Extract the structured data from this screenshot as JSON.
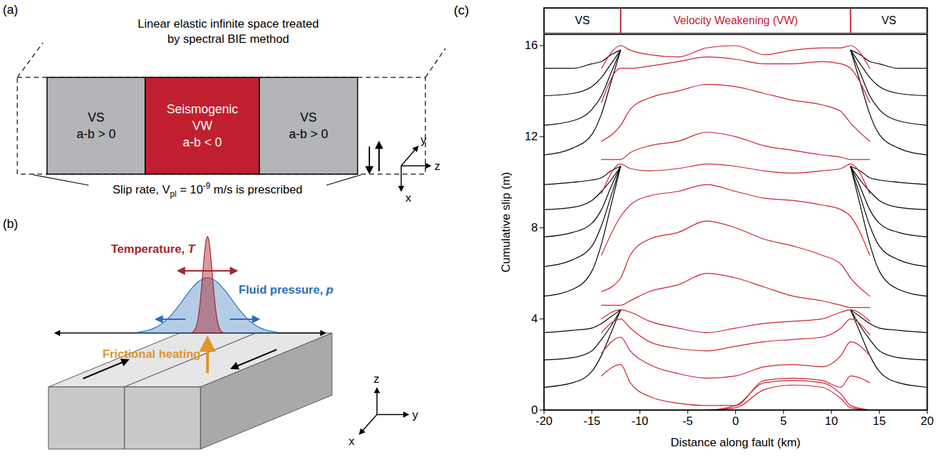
{
  "panels": {
    "a": {
      "letter": "(a)",
      "title_lines": [
        "Linear elastic infinite space treated",
        "by spectral BIE method"
      ],
      "regions": [
        {
          "lines": [
            "VS",
            "a-b > 0"
          ],
          "color": "#b3b5b8",
          "text_color": "#000000"
        },
        {
          "lines": [
            "Seismogenic",
            "VW",
            "a-b < 0"
          ],
          "color": "#c01f2f",
          "text_color": "#ffffff"
        },
        {
          "lines": [
            "VS",
            "a-b > 0"
          ],
          "color": "#b3b5b8",
          "text_color": "#000000"
        }
      ],
      "note": {
        "text": "Slip rate, V",
        "sub": "pl",
        "mid": " = 10",
        "sup": "-9",
        "end": " m/s is prescribed"
      },
      "axes": {
        "x": "x",
        "y": "y",
        "z": "z"
      }
    },
    "b": {
      "letter": "(b)",
      "temperature": {
        "label": "Temperature, T",
        "color": "#a8222a"
      },
      "pressure": {
        "label": "Fluid pressure, p",
        "color": "#2a6ebb"
      },
      "heating": {
        "label": "Frictional heating",
        "color": "#e0952a"
      },
      "axes": {
        "x": "x",
        "y": "y",
        "z": "z"
      }
    }
  },
  "chart_data": {
    "type": "line",
    "letter": "(c)",
    "xlabel": "Distance along fault (km)",
    "ylabel": "Cumulative slip (m)",
    "xlim": [
      -20,
      20
    ],
    "xticks": [
      -20,
      -15,
      -10,
      -5,
      0,
      5,
      10,
      15,
      20
    ],
    "ylim": [
      0,
      16.5
    ],
    "yticks": [
      0,
      4,
      8,
      12,
      16
    ],
    "zones": [
      {
        "label": "VS",
        "from": -20,
        "to": -12,
        "color": "#000000"
      },
      {
        "label": "Velocity Weakening (VW)",
        "from": -12,
        "to": 12,
        "color": "#c8202f"
      },
      {
        "label": "VS",
        "from": 12,
        "to": 20,
        "color": "#000000"
      }
    ],
    "series": [
      {
        "color": "#000000",
        "x": [
          -20,
          -17,
          -15,
          -14,
          -13,
          -12
        ],
        "values": [
          1.0,
          1.2,
          1.7,
          2.4,
          3.4,
          4.4
        ]
      },
      {
        "color": "#000000",
        "x": [
          -20,
          -17,
          -15,
          -14,
          -13,
          -12
        ],
        "values": [
          2.2,
          2.3,
          2.6,
          3.1,
          3.7,
          4.4
        ]
      },
      {
        "color": "#000000",
        "x": [
          -20,
          -17,
          -15,
          -14,
          -13,
          -12
        ],
        "values": [
          3.4,
          3.5,
          3.6,
          3.8,
          4.1,
          4.4
        ]
      },
      {
        "color": "#000000",
        "x": [
          -20,
          -17,
          -15,
          -14,
          -13,
          -12
        ],
        "values": [
          5.0,
          5.3,
          6.1,
          7.3,
          9.0,
          10.7
        ]
      },
      {
        "color": "#000000",
        "x": [
          -20,
          -17,
          -15,
          -14,
          -13,
          -12
        ],
        "values": [
          6.3,
          6.6,
          7.2,
          8.1,
          9.4,
          10.7
        ]
      },
      {
        "color": "#000000",
        "x": [
          -20,
          -17,
          -15,
          -14,
          -13,
          -12
        ],
        "values": [
          7.6,
          7.8,
          8.2,
          8.8,
          9.8,
          10.7
        ]
      },
      {
        "color": "#000000",
        "x": [
          -20,
          -17,
          -15,
          -14,
          -13,
          -12
        ],
        "values": [
          8.8,
          8.9,
          9.2,
          9.6,
          10.1,
          10.7
        ]
      },
      {
        "color": "#000000",
        "x": [
          -20,
          -17,
          -15,
          -14,
          -13,
          -12
        ],
        "values": [
          9.9,
          10.0,
          10.1,
          10.2,
          10.5,
          10.7
        ]
      },
      {
        "color": "#000000",
        "x": [
          -20,
          -17,
          -15,
          -14,
          -13,
          -12
        ],
        "values": [
          11.2,
          11.5,
          12.1,
          13.0,
          14.4,
          15.8
        ]
      },
      {
        "color": "#000000",
        "x": [
          -20,
          -17,
          -15,
          -14,
          -13,
          -12
        ],
        "values": [
          12.5,
          12.7,
          13.2,
          13.8,
          14.8,
          15.8
        ]
      },
      {
        "color": "#000000",
        "x": [
          -20,
          -17,
          -15,
          -14,
          -13,
          -12
        ],
        "values": [
          13.8,
          13.9,
          14.2,
          14.6,
          15.2,
          15.8
        ]
      },
      {
        "color": "#000000",
        "x": [
          -20,
          -17,
          -15,
          -14,
          -13,
          -12
        ],
        "values": [
          15.0,
          15.0,
          15.2,
          15.3,
          15.6,
          15.8
        ]
      },
      {
        "color": "#000000",
        "x": [
          12,
          13,
          14,
          15,
          17,
          20
        ],
        "values": [
          4.4,
          3.4,
          2.4,
          1.7,
          1.2,
          1.0
        ]
      },
      {
        "color": "#000000",
        "x": [
          12,
          13,
          14,
          15,
          17,
          20
        ],
        "values": [
          4.4,
          3.7,
          3.1,
          2.6,
          2.3,
          2.2
        ]
      },
      {
        "color": "#000000",
        "x": [
          12,
          13,
          14,
          15,
          17,
          20
        ],
        "values": [
          4.4,
          4.1,
          3.8,
          3.6,
          3.5,
          3.4
        ]
      },
      {
        "color": "#000000",
        "x": [
          12,
          13,
          14,
          15,
          17,
          20
        ],
        "values": [
          10.7,
          9.0,
          7.3,
          6.1,
          5.3,
          5.0
        ]
      },
      {
        "color": "#000000",
        "x": [
          12,
          13,
          14,
          15,
          17,
          20
        ],
        "values": [
          10.7,
          9.4,
          8.1,
          7.2,
          6.6,
          6.3
        ]
      },
      {
        "color": "#000000",
        "x": [
          12,
          13,
          14,
          15,
          17,
          20
        ],
        "values": [
          10.7,
          9.8,
          8.8,
          8.2,
          7.8,
          7.6
        ]
      },
      {
        "color": "#000000",
        "x": [
          12,
          13,
          14,
          15,
          17,
          20
        ],
        "values": [
          10.7,
          10.1,
          9.6,
          9.2,
          8.9,
          8.8
        ]
      },
      {
        "color": "#000000",
        "x": [
          12,
          13,
          14,
          15,
          17,
          20
        ],
        "values": [
          10.7,
          10.5,
          10.2,
          10.1,
          10.0,
          9.9
        ]
      },
      {
        "color": "#000000",
        "x": [
          12,
          13,
          14,
          15,
          17,
          20
        ],
        "values": [
          15.8,
          14.4,
          13.0,
          12.1,
          11.5,
          11.2
        ]
      },
      {
        "color": "#000000",
        "x": [
          12,
          13,
          14,
          15,
          17,
          20
        ],
        "values": [
          15.8,
          14.8,
          13.8,
          13.2,
          12.7,
          12.5
        ]
      },
      {
        "color": "#000000",
        "x": [
          12,
          13,
          14,
          15,
          17,
          20
        ],
        "values": [
          15.8,
          15.2,
          14.6,
          14.2,
          13.9,
          13.8
        ]
      },
      {
        "color": "#000000",
        "x": [
          12,
          13,
          14,
          15,
          17,
          20
        ],
        "values": [
          15.8,
          15.6,
          15.3,
          15.2,
          15.0,
          15.0
        ]
      },
      {
        "color": "#c8202f",
        "x": [
          -14,
          -12,
          -11,
          -9,
          -6,
          -3,
          0,
          3,
          6,
          9,
          11,
          12,
          14
        ],
        "values": [
          0,
          0,
          0,
          0,
          0,
          0,
          0.1,
          0.9,
          1.1,
          1.0,
          0.5,
          0.1,
          0
        ]
      },
      {
        "color": "#c8202f",
        "x": [
          -14,
          -12,
          -11,
          -9,
          -6,
          -3,
          0,
          3,
          6,
          9,
          11,
          12,
          14
        ],
        "values": [
          0,
          0,
          0,
          0,
          0,
          0,
          0.2,
          1.2,
          1.3,
          1.2,
          0.7,
          0.2,
          0
        ]
      },
      {
        "color": "#c8202f",
        "x": [
          -14,
          -12,
          -11,
          -9,
          -6,
          -3,
          0,
          3,
          6,
          9,
          11,
          12,
          14
        ],
        "values": [
          1.5,
          2.0,
          1.2,
          0.6,
          0.3,
          0.2,
          0.2,
          1.3,
          1.4,
          1.3,
          1.0,
          1.5,
          1.2
        ]
      },
      {
        "color": "#c8202f",
        "x": [
          -14,
          -12,
          -11,
          -9,
          -6,
          -3,
          0,
          3,
          6,
          9,
          11,
          12,
          14
        ],
        "values": [
          2.5,
          3.2,
          2.6,
          2.0,
          1.6,
          1.4,
          1.5,
          1.9,
          2.0,
          1.9,
          2.4,
          3.0,
          2.4
        ]
      },
      {
        "color": "#c8202f",
        "x": [
          -14,
          -12,
          -11,
          -9,
          -6,
          -3,
          0,
          3,
          6,
          9,
          11,
          12,
          14
        ],
        "values": [
          3.4,
          4.0,
          3.6,
          3.0,
          2.7,
          2.6,
          2.8,
          3.0,
          3.1,
          3.2,
          3.6,
          4.0,
          3.3
        ]
      },
      {
        "color": "#c8202f",
        "x": [
          -14,
          -12,
          -11,
          -9,
          -6,
          -3,
          0,
          3,
          6,
          9,
          11,
          12,
          14
        ],
        "values": [
          4.0,
          4.4,
          4.3,
          3.9,
          3.6,
          3.4,
          3.6,
          3.8,
          3.9,
          4.0,
          4.3,
          4.4,
          3.9
        ]
      },
      {
        "color": "#c8202f",
        "x": [
          -14,
          -12,
          -11,
          -9,
          -6,
          -3,
          0,
          3,
          6,
          9,
          11,
          12,
          14
        ],
        "values": [
          4.6,
          4.6,
          4.8,
          5.2,
          5.5,
          6.0,
          5.8,
          5.4,
          5.0,
          4.8,
          4.6,
          4.5,
          4.5
        ]
      },
      {
        "color": "#c8202f",
        "x": [
          -14,
          -12,
          -11,
          -9,
          -6,
          -3,
          0,
          3,
          6,
          9,
          11,
          12,
          14
        ],
        "values": [
          5.2,
          5.8,
          6.8,
          7.5,
          7.8,
          8.3,
          8.0,
          7.5,
          7.2,
          6.8,
          6.4,
          5.8,
          5.0
        ]
      },
      {
        "color": "#c8202f",
        "x": [
          -14,
          -12,
          -11,
          -9,
          -6,
          -3,
          0,
          3,
          6,
          9,
          11,
          12,
          14
        ],
        "values": [
          6.8,
          8.5,
          9.0,
          9.4,
          9.6,
          9.9,
          9.6,
          9.3,
          9.2,
          9.0,
          8.8,
          8.5,
          6.8
        ]
      },
      {
        "color": "#c8202f",
        "x": [
          -14,
          -12,
          -11,
          -9,
          -6,
          -3,
          0,
          3,
          6,
          9,
          11,
          12,
          14
        ],
        "values": [
          9.5,
          10.8,
          10.6,
          10.5,
          10.6,
          10.8,
          10.7,
          10.5,
          10.4,
          10.5,
          10.6,
          10.8,
          9.5
        ]
      },
      {
        "color": "#c8202f",
        "x": [
          -14,
          -12,
          -11,
          -9,
          -6,
          -3,
          0,
          3,
          6,
          9,
          11,
          12,
          14
        ],
        "values": [
          11.0,
          11.0,
          11.3,
          11.6,
          11.8,
          12.2,
          12.0,
          11.6,
          11.4,
          11.2,
          11.1,
          11.0,
          11.0
        ]
      },
      {
        "color": "#c8202f",
        "x": [
          -14,
          -12,
          -11,
          -9,
          -6,
          -3,
          0,
          3,
          6,
          9,
          11,
          12,
          14
        ],
        "values": [
          11.8,
          12.5,
          13.2,
          13.7,
          14.0,
          14.3,
          14.2,
          13.9,
          13.6,
          13.4,
          13.1,
          12.6,
          11.8
        ]
      },
      {
        "color": "#c8202f",
        "x": [
          -14,
          -12,
          -11,
          -9,
          -6,
          -3,
          0,
          3,
          6,
          9,
          11,
          12,
          14
        ],
        "values": [
          13.5,
          15.0,
          15.0,
          15.1,
          15.3,
          15.5,
          15.4,
          15.2,
          15.2,
          15.3,
          15.2,
          15.0,
          13.5
        ]
      },
      {
        "color": "#c8202f",
        "x": [
          -14,
          -12,
          -11,
          -9,
          -6,
          -3,
          0,
          3,
          6,
          9,
          11,
          12,
          14
        ],
        "values": [
          15.0,
          16.0,
          15.8,
          15.6,
          15.5,
          15.9,
          16.0,
          15.6,
          15.8,
          15.9,
          15.9,
          16.0,
          15.0
        ]
      }
    ]
  }
}
